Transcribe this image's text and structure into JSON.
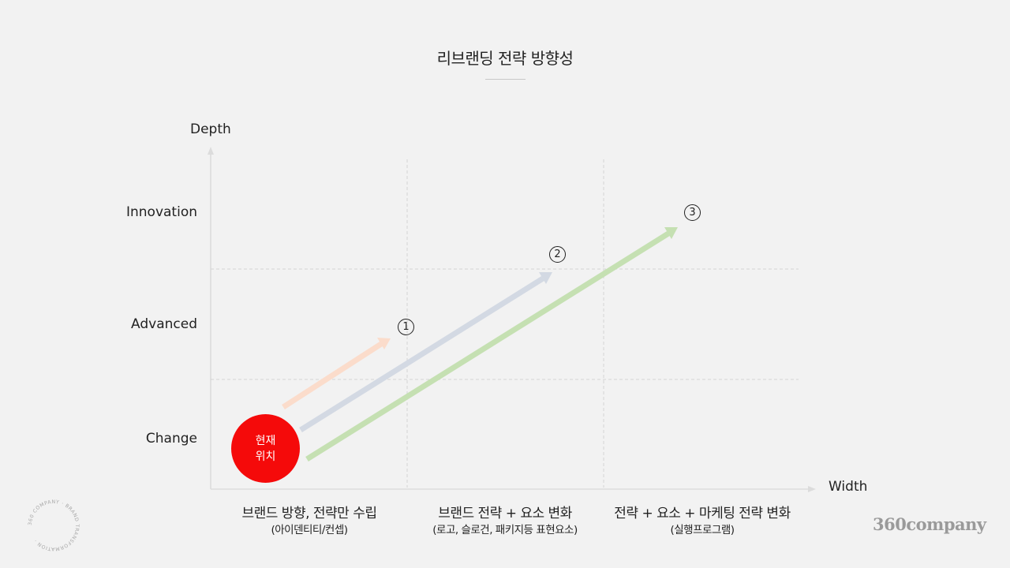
{
  "title": "리브랜딩 전략 방향성",
  "axes": {
    "y_label": "Depth",
    "x_label": "Width"
  },
  "y_levels": [
    "Change",
    "Advanced",
    "Innovation"
  ],
  "columns": [
    {
      "main": "브랜드 방향, 전략만 수립",
      "sub": "(아이덴티티/컨셉)"
    },
    {
      "main": "브랜드 전략 + 요소 변화",
      "sub": "(로고, 슬로건, 패키지등 표현요소)"
    },
    {
      "main": "전략 + 요소 + 마케팅 전략 변화",
      "sub": "(실행프로그램)"
    }
  ],
  "current_position": {
    "line1": "현재",
    "line2": "위치",
    "color": "#f50a0a"
  },
  "arrows": [
    {
      "marker": "1",
      "color": "#fbdccb"
    },
    {
      "marker": "2",
      "color": "#d3d9e3"
    },
    {
      "marker": "3",
      "color": "#c5e0b2"
    }
  ],
  "logo": {
    "text": "360company",
    "seal_text": "360 COMPANY · BRAND TRANSFORMATION ·"
  }
}
